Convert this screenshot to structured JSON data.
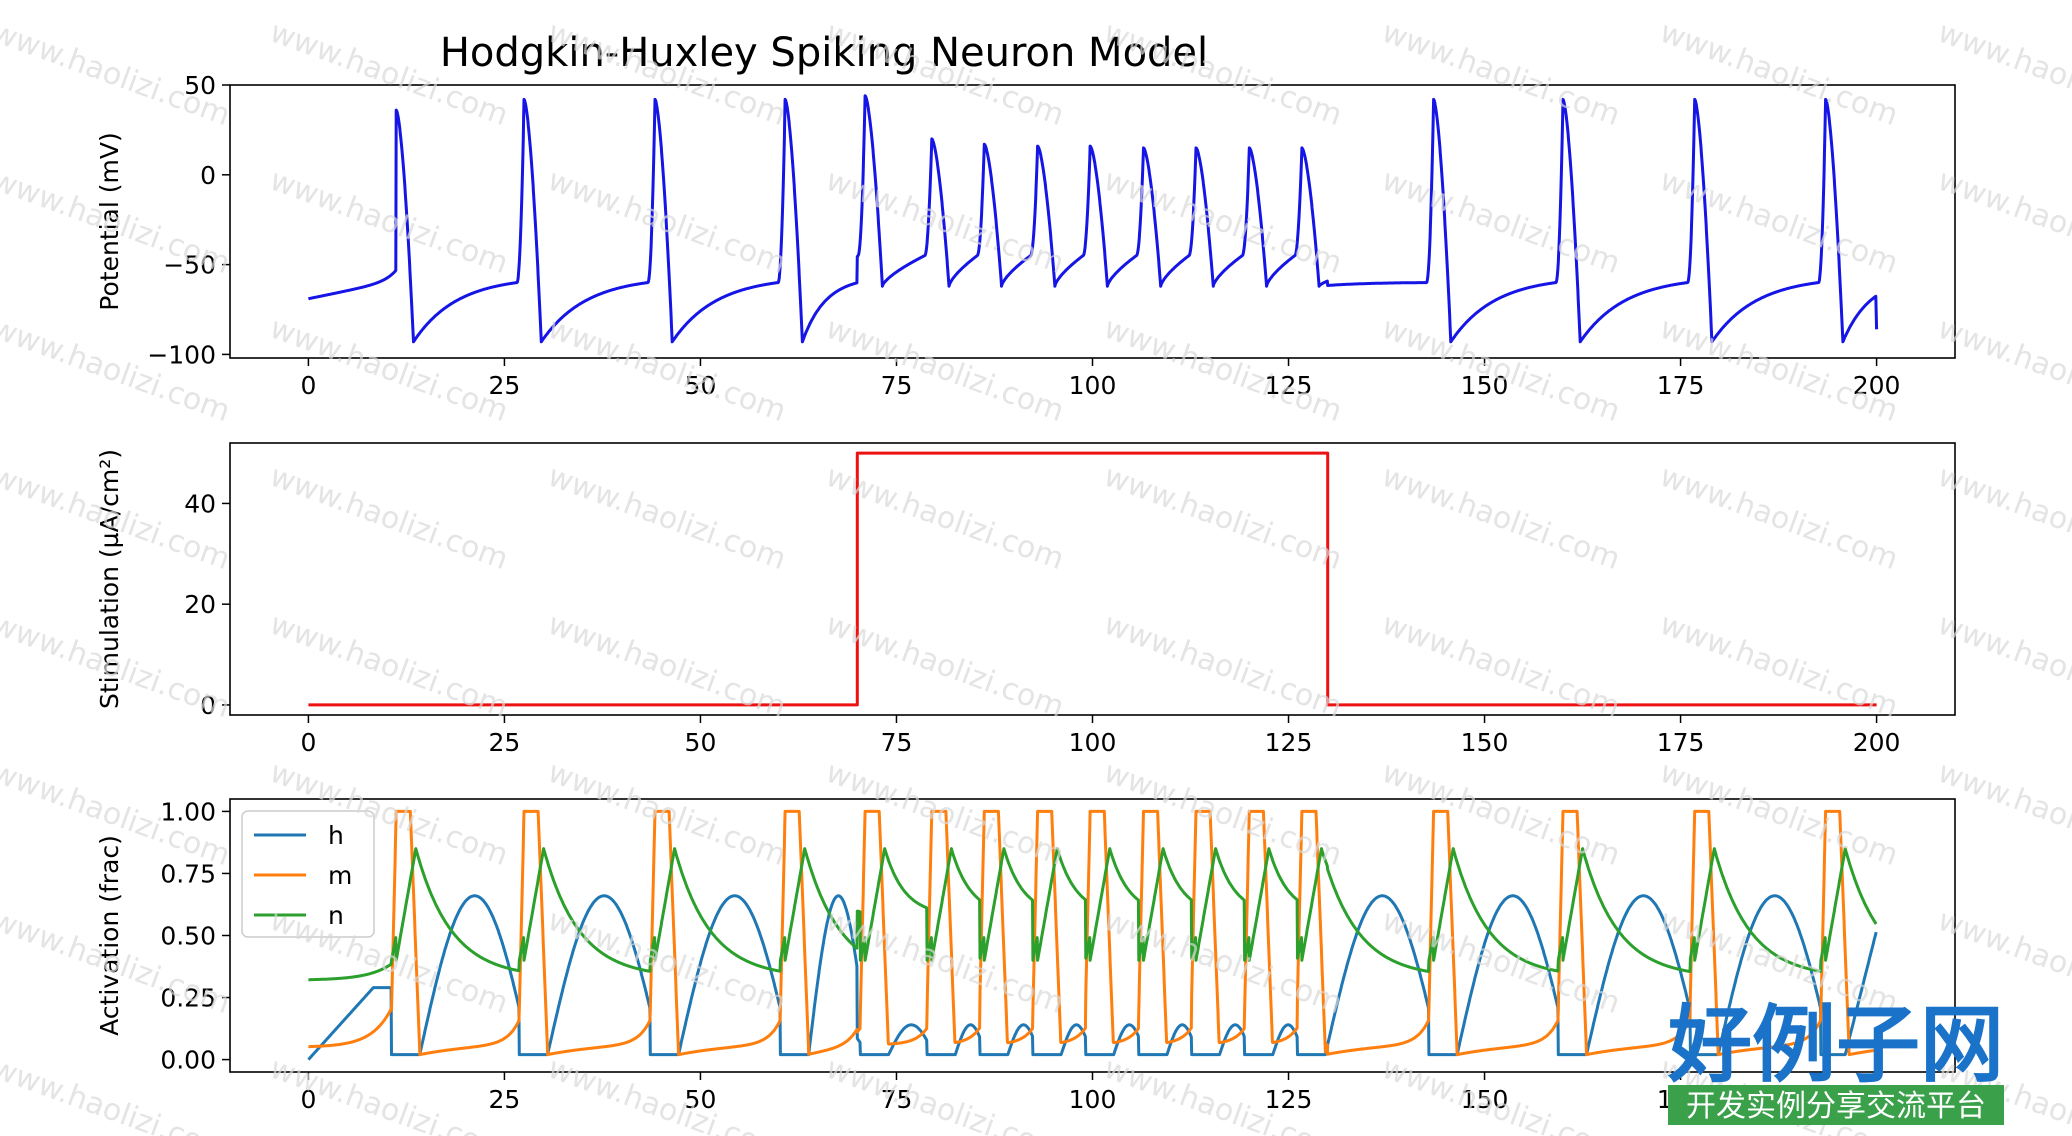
{
  "chart_data": {
    "title": "Hodgkin-Huxley Spiking Neuron Model",
    "panels": [
      {
        "id": "potential",
        "type": "line",
        "ylabel": "Potential (mV)",
        "xlim": [
          -10,
          210
        ],
        "ylim": [
          -102,
          50
        ],
        "xticks": [
          0,
          25,
          50,
          75,
          100,
          125,
          150,
          175,
          200
        ],
        "yticks": [
          -100,
          -50,
          0,
          50
        ],
        "ytick_labels": [
          "−100",
          "−50",
          "0",
          "50"
        ],
        "series": [
          {
            "color": "#1515e6",
            "spikes_t": [
              11.2,
              27.5,
              44.2,
              60.8,
              71.0,
              79.5,
              86.2,
              93.0,
              99.7,
              106.5,
              113.2,
              120.0,
              126.7,
              143.5,
              160.0,
              176.8,
              193.5
            ],
            "spikes_peak": [
              36,
              42,
              42,
              42,
              44,
              20,
              17,
              16,
              16,
              15,
              15,
              15,
              15,
              42,
              42,
              42,
              42
            ],
            "baseline_start": -69,
            "trough": -93,
            "trough_stim": -62,
            "end_value": -86
          }
        ]
      },
      {
        "id": "stimulation",
        "type": "line",
        "ylabel": "Stimulation (µA/cm²)",
        "xlim": [
          -10,
          210
        ],
        "ylim": [
          -2,
          52
        ],
        "xticks": [
          0,
          25,
          50,
          75,
          100,
          125,
          150,
          175,
          200
        ],
        "yticks": [
          0,
          20,
          40
        ],
        "ytick_labels": [
          "0",
          "20",
          "40"
        ],
        "series": [
          {
            "color": "#ee1111",
            "x": [
              0,
              70,
              70,
              130,
              130,
              200
            ],
            "y": [
              0,
              0,
              50,
              50,
              0,
              0
            ]
          }
        ]
      },
      {
        "id": "activation",
        "type": "line",
        "ylabel": "Activation (frac)",
        "xlim": [
          -10,
          210
        ],
        "ylim": [
          -0.05,
          1.05
        ],
        "xticks": [
          0,
          25,
          50,
          75,
          100,
          125,
          150,
          175,
          200
        ],
        "yticks": [
          0,
          0.25,
          0.5,
          0.75,
          1.0
        ],
        "ytick_labels": [
          "0.00",
          "0.25",
          "0.50",
          "0.75",
          "1.00"
        ],
        "legend": "top-left",
        "series": [
          {
            "name": "h",
            "color": "#1f77b4"
          },
          {
            "name": "m",
            "color": "#ff7f0e"
          },
          {
            "name": "n",
            "color": "#2ca02c"
          }
        ]
      }
    ]
  },
  "watermark": {
    "text": "www.haolizi.com",
    "color": "#d8d8d8"
  },
  "logo": {
    "main": "好例子网",
    "sub": "开发实例分享交流平台",
    "color": "#1a73c9",
    "sub_bg": "#3aa04a"
  }
}
